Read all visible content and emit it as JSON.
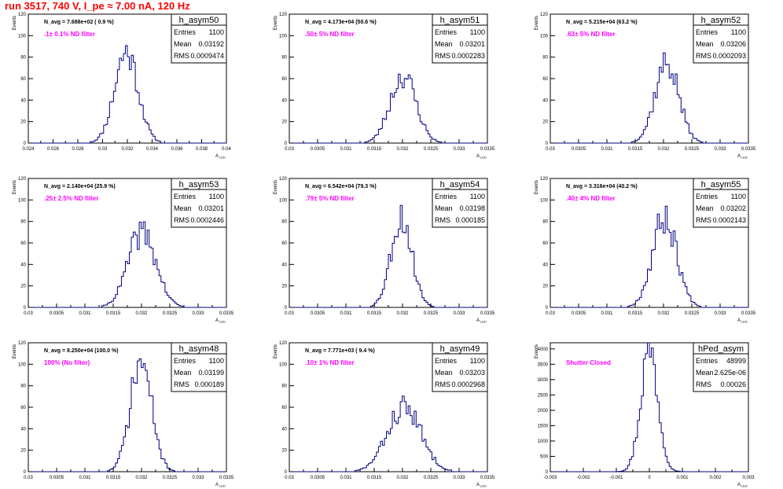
{
  "header": {
    "title": "run 3517,   740 V, I_pe ≈ 7.00 nA, 120 Hz"
  },
  "colors": {
    "histogram": "#000080",
    "frame": "#000000",
    "annotation": "#ff00ff",
    "title": "#ff0000"
  },
  "stat_labels": {
    "entries": "Entries",
    "mean": "Mean",
    "rms": "RMS"
  },
  "chart_data": [
    {
      "type": "histogram",
      "name": "h_asym50",
      "ylabel": "Events",
      "xlabel": "A",
      "xlabel_sub": "LED",
      "nevent_label": "N_avg = 7.688e+02 ( 0.9 %)",
      "filter_label": ".1± 0.1% ND filter",
      "stats": {
        "entries": "1100",
        "mean": "0.03192",
        "rms": "0.0009474"
      },
      "xlim": [
        0.024,
        0.04
      ],
      "ylim": [
        0,
        120
      ],
      "xticks": [
        "0.024",
        "0.026",
        "0.028",
        "0.03",
        "0.032",
        "0.034",
        "0.036",
        "0.038",
        "0.04"
      ],
      "yticks": [
        "0",
        "20",
        "40",
        "60",
        "80",
        "100",
        "120"
      ],
      "mean": 0.03192,
      "sigma": 0.00095,
      "peak": 85,
      "seed": 11
    },
    {
      "type": "histogram",
      "name": "h_asym51",
      "ylabel": "Events",
      "xlabel": "A",
      "xlabel_sub": "LED",
      "nevent_label": "N_avg = 4.173e+04 (50.6 %)",
      "filter_label": ".50± 5% ND filter",
      "stats": {
        "entries": "1100",
        "mean": "0.03201",
        "rms": "0.0002283"
      },
      "xlim": [
        0.03,
        0.0335
      ],
      "ylim": [
        0,
        120
      ],
      "xticks": [
        "0.03",
        "0.0305",
        "0.031",
        "0.0315",
        "0.032",
        "0.0325",
        "0.033",
        "0.0335"
      ],
      "yticks": [
        "0",
        "20",
        "40",
        "60",
        "80",
        "100",
        "120"
      ],
      "mean": 0.03201,
      "sigma": 0.000228,
      "peak": 63,
      "seed": 23
    },
    {
      "type": "histogram",
      "name": "h_asym52",
      "ylabel": "Events",
      "xlabel": "A",
      "xlabel_sub": "LED",
      "nevent_label": "N_avg = 5.215e+04 (63.2 %)",
      "filter_label": ".63± 5% ND filter",
      "stats": {
        "entries": "1100",
        "mean": "0.03206",
        "rms": "0.0002093"
      },
      "xlim": [
        0.03,
        0.0335
      ],
      "ylim": [
        0,
        120
      ],
      "xticks": [
        "0.03",
        "0.0305",
        "0.031",
        "0.0315",
        "0.032",
        "0.0325",
        "0.033",
        "0.0335"
      ],
      "yticks": [
        "0",
        "20",
        "40",
        "60",
        "80",
        "100",
        "120"
      ],
      "mean": 0.03206,
      "sigma": 0.000209,
      "peak": 75,
      "seed": 37
    },
    {
      "type": "histogram",
      "name": "h_asym53",
      "ylabel": "Events",
      "xlabel": "A",
      "xlabel_sub": "LED",
      "nevent_label": "N_avg = 2.140e+04 (25.9 %)",
      "filter_label": ".25± 2.5% ND filter",
      "stats": {
        "entries": "1100",
        "mean": "0.03201",
        "rms": "0.0002446"
      },
      "xlim": [
        0.03,
        0.0335
      ],
      "ylim": [
        0,
        120
      ],
      "xticks": [
        "0.03",
        "0.0305",
        "0.031",
        "0.0315",
        "0.032",
        "0.0325",
        "0.033",
        "0.0335"
      ],
      "yticks": [
        "0",
        "20",
        "40",
        "60",
        "80",
        "100",
        "120"
      ],
      "mean": 0.03201,
      "sigma": 0.000245,
      "peak": 70,
      "seed": 41
    },
    {
      "type": "histogram",
      "name": "h_asym54",
      "ylabel": "Events",
      "xlabel": "A",
      "xlabel_sub": "LED",
      "nevent_label": "N_avg = 6.542e+04 (79.3 %)",
      "filter_label": ".79± 5% ND filter",
      "stats": {
        "entries": "1100",
        "mean": "0.03198",
        "rms": "0.000185"
      },
      "xlim": [
        0.03,
        0.0335
      ],
      "ylim": [
        0,
        120
      ],
      "xticks": [
        "0.03",
        "0.0305",
        "0.031",
        "0.0315",
        "0.032",
        "0.0325",
        "0.033",
        "0.0335"
      ],
      "yticks": [
        "0",
        "20",
        "40",
        "60",
        "80",
        "100",
        "120"
      ],
      "mean": 0.03198,
      "sigma": 0.000185,
      "peak": 84,
      "seed": 53
    },
    {
      "type": "histogram",
      "name": "h_asym55",
      "ylabel": "Events",
      "xlabel": "A",
      "xlabel_sub": "LED",
      "nevent_label": "N_avg = 3.316e+04 (40.2 %)",
      "filter_label": ".40± 4% ND filter",
      "stats": {
        "entries": "1100",
        "mean": "0.03202",
        "rms": "0.0002143"
      },
      "xlim": [
        0.03,
        0.0335
      ],
      "ylim": [
        0,
        120
      ],
      "xticks": [
        "0.03",
        "0.0305",
        "0.031",
        "0.0315",
        "0.032",
        "0.0325",
        "0.033",
        "0.0335"
      ],
      "yticks": [
        "0",
        "20",
        "40",
        "60",
        "80",
        "100",
        "120"
      ],
      "mean": 0.03202,
      "sigma": 0.000214,
      "peak": 84,
      "seed": 67
    },
    {
      "type": "histogram",
      "name": "h_asym48",
      "ylabel": "Events",
      "xlabel": "A",
      "xlabel_sub": "LED",
      "nevent_label": "N_avg = 8.250e+04 (100.0 %)",
      "filter_label": "100% (No filter)",
      "stats": {
        "entries": "1100",
        "mean": "0.03199",
        "rms": "0.000189"
      },
      "xlim": [
        0.03,
        0.0335
      ],
      "ylim": [
        0,
        120
      ],
      "xticks": [
        "0.03",
        "0.0305",
        "0.031",
        "0.0315",
        "0.032",
        "0.0325",
        "0.033",
        "0.0335"
      ],
      "yticks": [
        "0",
        "20",
        "40",
        "60",
        "80",
        "100",
        "120"
      ],
      "mean": 0.03199,
      "sigma": 0.000189,
      "peak": 102,
      "seed": 71
    },
    {
      "type": "histogram",
      "name": "h_asym49",
      "ylabel": "Events",
      "xlabel": "A",
      "xlabel_sub": "LED",
      "nevent_label": "N_avg = 7.771e+03 ( 9.4 %)",
      "filter_label": ".10± 1% ND filter",
      "stats": {
        "entries": "1100",
        "mean": "0.03203",
        "rms": "0.0002968"
      },
      "xlim": [
        0.03,
        0.0335
      ],
      "ylim": [
        0,
        120
      ],
      "xticks": [
        "0.03",
        "0.0305",
        "0.031",
        "0.0315",
        "0.032",
        "0.0325",
        "0.033",
        "0.0335"
      ],
      "yticks": [
        "0",
        "20",
        "40",
        "60",
        "80",
        "100",
        "120"
      ],
      "mean": 0.03203,
      "sigma": 0.000297,
      "peak": 60,
      "seed": 83
    },
    {
      "type": "histogram",
      "name": "hPed_asym",
      "ylabel": "Events",
      "xlabel": "A",
      "xlabel_sub": "LED",
      "nevent_label": "",
      "filter_label": "Shutter Closed",
      "stats": {
        "entries": "48999",
        "mean": "2.625e-06",
        "rms": "0.00026"
      },
      "xlim": [
        -0.003,
        0.003
      ],
      "ylim": [
        0,
        4200
      ],
      "xticks": [
        "-0.003",
        "-0.002",
        "-0.001",
        "0",
        "0.001",
        "0.002",
        "0.003"
      ],
      "yticks": [
        "0",
        "500",
        "1000",
        "1500",
        "2000",
        "2500",
        "3000",
        "3500",
        "4000"
      ],
      "mean": 2.6e-06,
      "sigma": 0.00026,
      "peak": 4000,
      "seed": 97
    }
  ]
}
